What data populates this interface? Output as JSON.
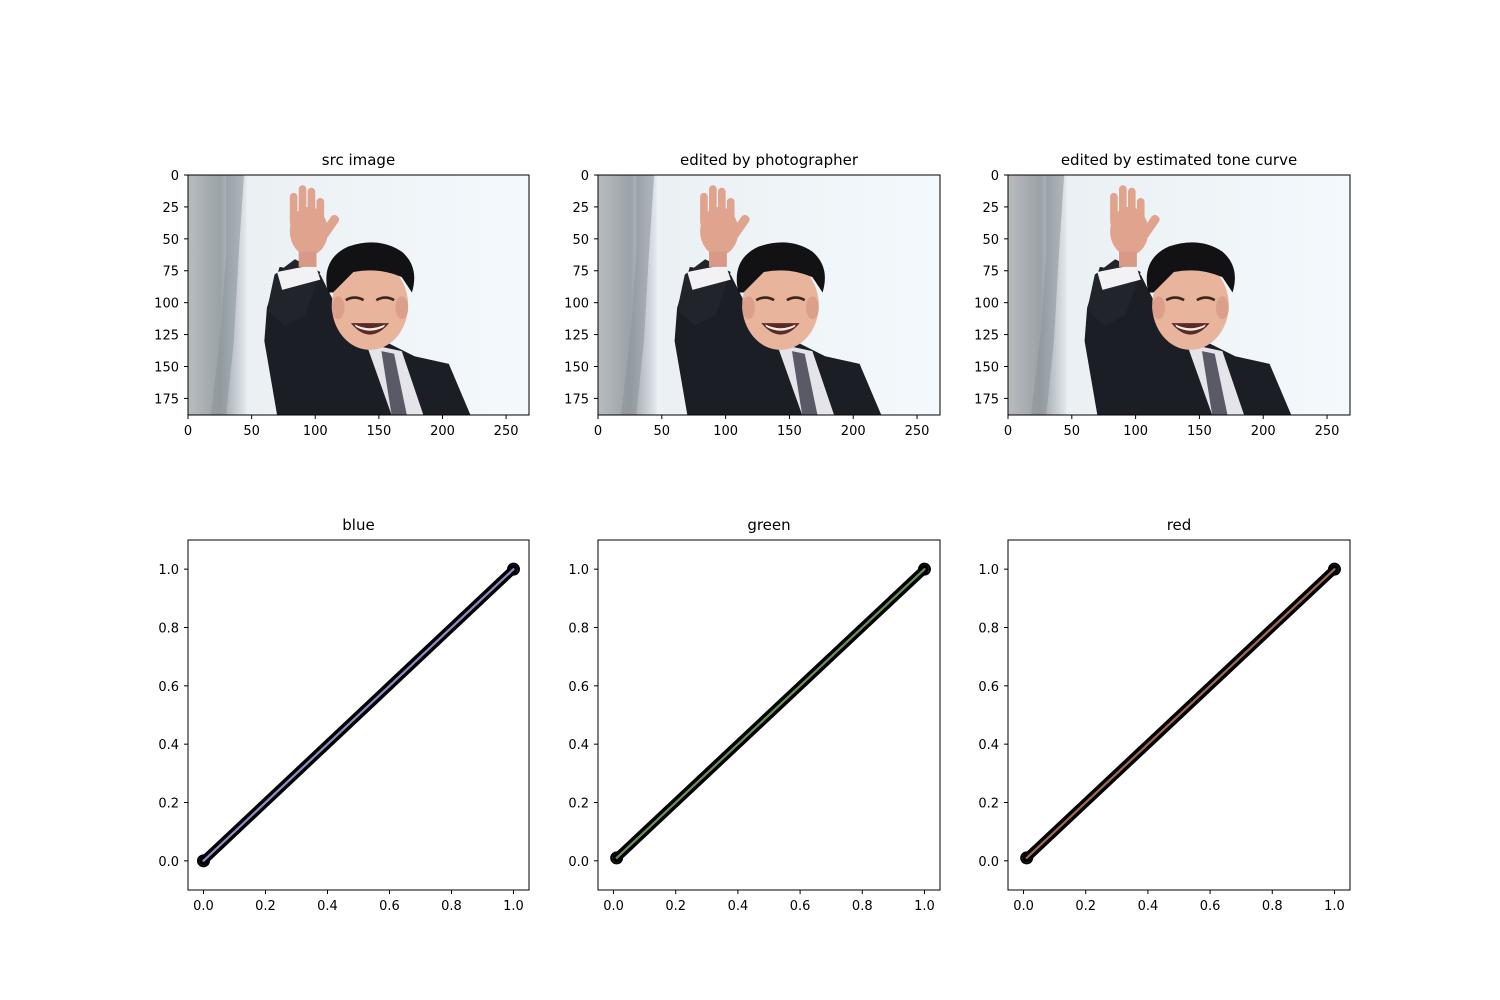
{
  "chart_data": [
    {
      "type": "image",
      "title": "src image",
      "xlim": [
        0,
        268
      ],
      "ylim": [
        188,
        0
      ],
      "xticks": [
        0,
        50,
        100,
        150,
        200,
        250
      ],
      "yticks": [
        0,
        25,
        50,
        75,
        100,
        125,
        150,
        175
      ],
      "content": "photo of a smiling man in a dark suit waving his right hand against a pale sky"
    },
    {
      "type": "image",
      "title": "edited by photographer",
      "xlim": [
        0,
        268
      ],
      "ylim": [
        188,
        0
      ],
      "xticks": [
        0,
        50,
        100,
        150,
        200,
        250
      ],
      "yticks": [
        0,
        25,
        50,
        75,
        100,
        125,
        150,
        175
      ],
      "content": "same photo, photographer-edited"
    },
    {
      "type": "image",
      "title": "edited by estimated tone curve",
      "xlim": [
        0,
        268
      ],
      "ylim": [
        188,
        0
      ],
      "xticks": [
        0,
        50,
        100,
        150,
        200,
        250
      ],
      "yticks": [
        0,
        25,
        50,
        75,
        100,
        125,
        150,
        175
      ],
      "content": "same photo, edited by estimated tone curve"
    },
    {
      "type": "scatter",
      "title": "blue",
      "xlim": [
        -0.05,
        1.05
      ],
      "ylim": [
        -0.1,
        1.1
      ],
      "xticks": [
        0.0,
        0.2,
        0.4,
        0.6,
        0.8,
        1.0
      ],
      "yticks": [
        0.0,
        0.2,
        0.4,
        0.6,
        0.8,
        1.0
      ],
      "x_range": [
        0.0,
        1.0
      ],
      "y_range": [
        0.0,
        1.0
      ],
      "series": [
        {
          "color": "#000000",
          "x": [
            0.0,
            1.0
          ],
          "y": [
            0.0,
            1.0
          ]
        },
        {
          "color": "#8f8fc8",
          "x": [
            0.0,
            1.0
          ],
          "y": [
            0.0,
            1.0
          ]
        }
      ]
    },
    {
      "type": "scatter",
      "title": "green",
      "xlim": [
        -0.05,
        1.05
      ],
      "ylim": [
        -0.1,
        1.1
      ],
      "xticks": [
        0.0,
        0.2,
        0.4,
        0.6,
        0.8,
        1.0
      ],
      "yticks": [
        0.0,
        0.2,
        0.4,
        0.6,
        0.8,
        1.0
      ],
      "x_range": [
        0.01,
        1.0
      ],
      "y_range": [
        0.01,
        1.0
      ],
      "series": [
        {
          "color": "#000000",
          "x": [
            0.01,
            1.0
          ],
          "y": [
            0.01,
            1.0
          ]
        },
        {
          "color": "#6f8f5f",
          "x": [
            0.01,
            1.0
          ],
          "y": [
            0.01,
            1.0
          ]
        }
      ]
    },
    {
      "type": "scatter",
      "title": "red",
      "xlim": [
        -0.05,
        1.05
      ],
      "ylim": [
        -0.1,
        1.1
      ],
      "xticks": [
        0.0,
        0.2,
        0.4,
        0.6,
        0.8,
        1.0
      ],
      "yticks": [
        0.0,
        0.2,
        0.4,
        0.6,
        0.8,
        1.0
      ],
      "x_range": [
        0.01,
        1.0
      ],
      "y_range": [
        0.01,
        1.0
      ],
      "series": [
        {
          "color": "#000000",
          "x": [
            0.01,
            1.0
          ],
          "y": [
            0.01,
            1.0
          ]
        },
        {
          "color": "#a06a5a",
          "x": [
            0.01,
            1.0
          ],
          "y": [
            0.01,
            1.0
          ]
        }
      ]
    }
  ]
}
